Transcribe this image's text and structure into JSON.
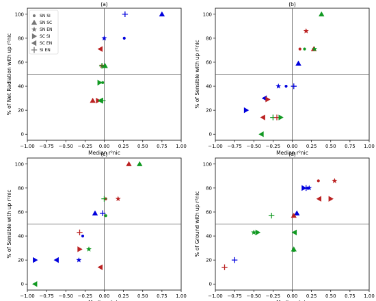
{
  "figure": {
    "symbols": {
      "SN SI": "circle",
      "SN SC": "triangle-up",
      "SN EN": "star",
      "SC SI": "triangle-right",
      "SC EN": "triangle-left",
      "SI EN": "plus"
    },
    "colors": {
      "blue": "#0000dd",
      "red": "#bb2222",
      "green": "#119922"
    },
    "legend_entries": [
      "SN SI",
      "SN SC",
      "SN EN",
      "SC SI",
      "SC EN",
      "SI EN"
    ],
    "legend_marker_color": "#777777"
  },
  "chart_data": [
    {
      "type": "scatter",
      "title": "(a)",
      "xlabel": "Median r²nic",
      "ylabel": "% of Net Radiation with up r²nic",
      "xlim": [
        -1.0,
        1.0
      ],
      "ylim": [
        -5,
        105
      ],
      "xticks": [
        -1.0,
        -0.75,
        -0.5,
        -0.25,
        0.0,
        0.25,
        0.5,
        0.75,
        1.0
      ],
      "xtick_labels": [
        "−1.00",
        "−0.75",
        "−0.50",
        "−0.25",
        "0.00",
        "0.25",
        "0.50",
        "0.75",
        "1.00"
      ],
      "yticks": [
        0,
        20,
        40,
        60,
        80,
        100
      ],
      "ytick_labels": [
        "0",
        "20",
        "40",
        "60",
        "80",
        "100"
      ],
      "reference_lines": {
        "x": 0,
        "y": 50
      },
      "legend": "upper-left",
      "points": [
        {
          "x": 0.75,
          "y": 100,
          "marker": "triangle-up",
          "color": "blue"
        },
        {
          "x": 0.27,
          "y": 100,
          "marker": "plus",
          "color": "blue"
        },
        {
          "x": 0.26,
          "y": 80,
          "marker": "circle",
          "color": "blue"
        },
        {
          "x": 0.0,
          "y": 80,
          "marker": "star",
          "color": "blue"
        },
        {
          "x": -0.05,
          "y": 71,
          "marker": "triangle-left",
          "color": "red"
        },
        {
          "x": -0.03,
          "y": 57,
          "marker": "star",
          "color": "red"
        },
        {
          "x": 0.01,
          "y": 57,
          "marker": "triangle-up",
          "color": "green"
        },
        {
          "x": -0.03,
          "y": 57,
          "marker": "plus",
          "color": "green"
        },
        {
          "x": -0.06,
          "y": 43,
          "marker": "triangle-right",
          "color": "green"
        },
        {
          "x": -0.02,
          "y": 43,
          "marker": "circle",
          "color": "green"
        },
        {
          "x": -0.15,
          "y": 28,
          "marker": "triangle-up",
          "color": "red"
        },
        {
          "x": -0.08,
          "y": 28,
          "marker": "triangle-right",
          "color": "red"
        },
        {
          "x": -0.05,
          "y": 28,
          "marker": "triangle-left",
          "color": "green"
        },
        {
          "x": -0.02,
          "y": 28,
          "marker": "plus",
          "color": "green"
        }
      ]
    },
    {
      "type": "scatter",
      "title": "(b)",
      "xlabel": "Median r²nic",
      "ylabel": "% of Sensible with up r²nic",
      "xlim": [
        -1.0,
        1.0
      ],
      "ylim": [
        -5,
        105
      ],
      "xticks": [
        -1.0,
        -0.75,
        -0.5,
        -0.25,
        0.0,
        0.25,
        0.5,
        0.75,
        1.0
      ],
      "xtick_labels": [
        "−1.00",
        "−0.75",
        "−0.50",
        "−0.25",
        "0.00",
        "0.25",
        "0.50",
        "0.75",
        "1.00"
      ],
      "yticks": [
        0,
        20,
        40,
        60,
        80,
        100
      ],
      "ytick_labels": [
        "0",
        "20",
        "40",
        "60",
        "80",
        "100"
      ],
      "reference_lines": {
        "x": 0,
        "y": 50
      },
      "points": [
        {
          "x": 0.38,
          "y": 100,
          "marker": "triangle-up",
          "color": "green"
        },
        {
          "x": 0.18,
          "y": 86,
          "marker": "star",
          "color": "red"
        },
        {
          "x": 0.1,
          "y": 71,
          "marker": "circle",
          "color": "red"
        },
        {
          "x": 0.16,
          "y": 71,
          "marker": "circle",
          "color": "green"
        },
        {
          "x": 0.28,
          "y": 71,
          "marker": "triangle-up",
          "color": "red"
        },
        {
          "x": 0.29,
          "y": 71,
          "marker": "star",
          "color": "green"
        },
        {
          "x": 0.08,
          "y": 59,
          "marker": "triangle-up",
          "color": "blue"
        },
        {
          "x": -0.18,
          "y": 40,
          "marker": "star",
          "color": "blue"
        },
        {
          "x": -0.08,
          "y": 40,
          "marker": "circle",
          "color": "blue"
        },
        {
          "x": 0.02,
          "y": 40,
          "marker": "plus",
          "color": "blue"
        },
        {
          "x": -0.36,
          "y": 30,
          "marker": "triangle-left",
          "color": "blue"
        },
        {
          "x": -0.32,
          "y": 29,
          "marker": "triangle-right",
          "color": "red"
        },
        {
          "x": -0.6,
          "y": 20,
          "marker": "triangle-right",
          "color": "blue"
        },
        {
          "x": -0.38,
          "y": 14,
          "marker": "triangle-left",
          "color": "red"
        },
        {
          "x": -0.25,
          "y": 14,
          "marker": "plus",
          "color": "green"
        },
        {
          "x": -0.2,
          "y": 14,
          "marker": "plus",
          "color": "red"
        },
        {
          "x": -0.15,
          "y": 14,
          "marker": "triangle-right",
          "color": "green"
        },
        {
          "x": -0.4,
          "y": 0,
          "marker": "triangle-left",
          "color": "green"
        }
      ]
    },
    {
      "type": "scatter",
      "title": "(c)",
      "xlabel": "Median r²nic",
      "ylabel": "% of Sensible with up r²nic",
      "xlim": [
        -1.0,
        1.0
      ],
      "ylim": [
        -5,
        105
      ],
      "xticks": [
        -1.0,
        -0.75,
        -0.5,
        -0.25,
        0.0,
        0.25,
        0.5,
        0.75,
        1.0
      ],
      "xtick_labels": [
        "−1.00",
        "−0.75",
        "−0.50",
        "−0.25",
        "0.00",
        "0.25",
        "0.50",
        "0.75",
        "1.00"
      ],
      "yticks": [
        0,
        20,
        40,
        60,
        80,
        100
      ],
      "ytick_labels": [
        "0",
        "20",
        "40",
        "60",
        "80",
        "100"
      ],
      "reference_lines": {
        "x": 0,
        "y": 50
      },
      "points": [
        {
          "x": 0.32,
          "y": 100,
          "marker": "triangle-up",
          "color": "red"
        },
        {
          "x": 0.46,
          "y": 100,
          "marker": "triangle-up",
          "color": "green"
        },
        {
          "x": 0.18,
          "y": 71,
          "marker": "star",
          "color": "red"
        },
        {
          "x": 0.02,
          "y": 71,
          "marker": "circle",
          "color": "red"
        },
        {
          "x": 0.0,
          "y": 71,
          "marker": "plus",
          "color": "green"
        },
        {
          "x": -0.12,
          "y": 59,
          "marker": "triangle-up",
          "color": "blue"
        },
        {
          "x": -0.02,
          "y": 59,
          "marker": "plus",
          "color": "blue"
        },
        {
          "x": 0.02,
          "y": 57,
          "marker": "circle",
          "color": "green"
        },
        {
          "x": -0.32,
          "y": 43,
          "marker": "plus",
          "color": "red"
        },
        {
          "x": -0.28,
          "y": 40,
          "marker": "circle",
          "color": "blue"
        },
        {
          "x": -0.32,
          "y": 29,
          "marker": "triangle-right",
          "color": "red"
        },
        {
          "x": -0.2,
          "y": 29,
          "marker": "star",
          "color": "green"
        },
        {
          "x": -0.9,
          "y": 20,
          "marker": "triangle-right",
          "color": "blue"
        },
        {
          "x": -0.62,
          "y": 20,
          "marker": "triangle-left",
          "color": "blue"
        },
        {
          "x": -0.33,
          "y": 20,
          "marker": "star",
          "color": "blue"
        },
        {
          "x": -0.05,
          "y": 14,
          "marker": "triangle-left",
          "color": "red"
        },
        {
          "x": -0.9,
          "y": 0,
          "marker": "triangle-left",
          "color": "green"
        }
      ]
    },
    {
      "type": "scatter",
      "title": "(d)",
      "xlabel": "Median r²nic",
      "ylabel": "% of Ground with up r²nic",
      "xlim": [
        -1.0,
        1.0
      ],
      "ylim": [
        -5,
        105
      ],
      "xticks": [
        -1.0,
        -0.75,
        -0.5,
        -0.25,
        0.0,
        0.25,
        0.5,
        0.75,
        1.0
      ],
      "xtick_labels": [
        "−1.00",
        "−0.75",
        "−0.50",
        "−0.25",
        "0.00",
        "0.25",
        "0.50",
        "0.75",
        "1.00"
      ],
      "yticks": [
        0,
        20,
        40,
        60,
        80,
        100
      ],
      "ytick_labels": [
        "0",
        "20",
        "40",
        "60",
        "80",
        "100"
      ],
      "reference_lines": {
        "x": 0,
        "y": 50
      },
      "points": [
        {
          "x": 0.34,
          "y": 86,
          "marker": "circle",
          "color": "red"
        },
        {
          "x": 0.55,
          "y": 86,
          "marker": "star",
          "color": "red"
        },
        {
          "x": 0.15,
          "y": 80,
          "marker": "triangle-right",
          "color": "blue"
        },
        {
          "x": 0.18,
          "y": 80,
          "marker": "plus",
          "color": "blue"
        },
        {
          "x": 0.22,
          "y": 80,
          "marker": "star",
          "color": "blue"
        },
        {
          "x": 0.2,
          "y": 80,
          "marker": "circle",
          "color": "blue"
        },
        {
          "x": 0.35,
          "y": 71,
          "marker": "triangle-left",
          "color": "red"
        },
        {
          "x": 0.5,
          "y": 71,
          "marker": "triangle-right",
          "color": "red"
        },
        {
          "x": 0.06,
          "y": 59,
          "marker": "triangle-up",
          "color": "blue"
        },
        {
          "x": 0.02,
          "y": 57,
          "marker": "triangle-up",
          "color": "red"
        },
        {
          "x": -0.27,
          "y": 57,
          "marker": "plus",
          "color": "green"
        },
        {
          "x": -0.5,
          "y": 43,
          "marker": "star",
          "color": "green"
        },
        {
          "x": -0.45,
          "y": 43,
          "marker": "triangle-right",
          "color": "green"
        },
        {
          "x": 0.03,
          "y": 43,
          "marker": "triangle-left",
          "color": "green"
        },
        {
          "x": 0.02,
          "y": 29,
          "marker": "triangle-up",
          "color": "green"
        },
        {
          "x": 0.02,
          "y": 28,
          "marker": "circle",
          "color": "green"
        },
        {
          "x": -0.75,
          "y": 20,
          "marker": "plus",
          "color": "blue"
        },
        {
          "x": -0.88,
          "y": 14,
          "marker": "plus",
          "color": "red"
        }
      ]
    }
  ]
}
